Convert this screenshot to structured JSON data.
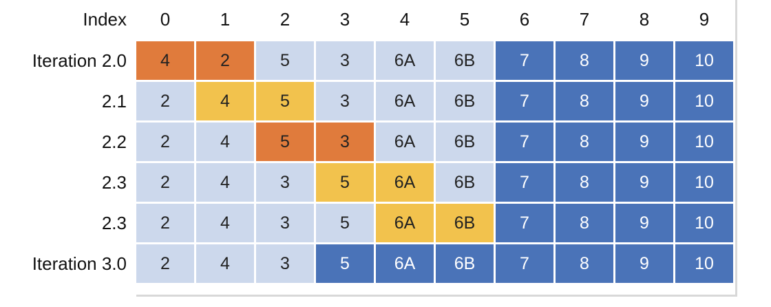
{
  "header": {
    "label": "Index",
    "indices": [
      "0",
      "1",
      "2",
      "3",
      "4",
      "5",
      "6",
      "7",
      "8",
      "9"
    ]
  },
  "colors": {
    "light": "#ccd8ec",
    "dark": "#4a73b8",
    "orange": "#e07b3c",
    "yellow": "#f2c24d"
  },
  "rows": [
    {
      "label": "Iteration 2.0",
      "cells": [
        {
          "v": "4",
          "c": "orange"
        },
        {
          "v": "2",
          "c": "orange"
        },
        {
          "v": "5",
          "c": "light"
        },
        {
          "v": "3",
          "c": "light"
        },
        {
          "v": "6A",
          "c": "light"
        },
        {
          "v": "6B",
          "c": "light"
        },
        {
          "v": "7",
          "c": "dark"
        },
        {
          "v": "8",
          "c": "dark"
        },
        {
          "v": "9",
          "c": "dark"
        },
        {
          "v": "10",
          "c": "dark"
        }
      ]
    },
    {
      "label": "2.1",
      "cells": [
        {
          "v": "2",
          "c": "light"
        },
        {
          "v": "4",
          "c": "yellow"
        },
        {
          "v": "5",
          "c": "yellow"
        },
        {
          "v": "3",
          "c": "light"
        },
        {
          "v": "6A",
          "c": "light"
        },
        {
          "v": "6B",
          "c": "light"
        },
        {
          "v": "7",
          "c": "dark"
        },
        {
          "v": "8",
          "c": "dark"
        },
        {
          "v": "9",
          "c": "dark"
        },
        {
          "v": "10",
          "c": "dark"
        }
      ]
    },
    {
      "label": "2.2",
      "cells": [
        {
          "v": "2",
          "c": "light"
        },
        {
          "v": "4",
          "c": "light"
        },
        {
          "v": "5",
          "c": "orange"
        },
        {
          "v": "3",
          "c": "orange"
        },
        {
          "v": "6A",
          "c": "light"
        },
        {
          "v": "6B",
          "c": "light"
        },
        {
          "v": "7",
          "c": "dark"
        },
        {
          "v": "8",
          "c": "dark"
        },
        {
          "v": "9",
          "c": "dark"
        },
        {
          "v": "10",
          "c": "dark"
        }
      ]
    },
    {
      "label": "2.3",
      "cells": [
        {
          "v": "2",
          "c": "light"
        },
        {
          "v": "4",
          "c": "light"
        },
        {
          "v": "3",
          "c": "light"
        },
        {
          "v": "5",
          "c": "yellow"
        },
        {
          "v": "6A",
          "c": "yellow"
        },
        {
          "v": "6B",
          "c": "light"
        },
        {
          "v": "7",
          "c": "dark"
        },
        {
          "v": "8",
          "c": "dark"
        },
        {
          "v": "9",
          "c": "dark"
        },
        {
          "v": "10",
          "c": "dark"
        }
      ]
    },
    {
      "label": "2.3",
      "cells": [
        {
          "v": "2",
          "c": "light"
        },
        {
          "v": "4",
          "c": "light"
        },
        {
          "v": "3",
          "c": "light"
        },
        {
          "v": "5",
          "c": "light"
        },
        {
          "v": "6A",
          "c": "yellow"
        },
        {
          "v": "6B",
          "c": "yellow"
        },
        {
          "v": "7",
          "c": "dark"
        },
        {
          "v": "8",
          "c": "dark"
        },
        {
          "v": "9",
          "c": "dark"
        },
        {
          "v": "10",
          "c": "dark"
        }
      ]
    },
    {
      "label": "Iteration 3.0",
      "cells": [
        {
          "v": "2",
          "c": "light"
        },
        {
          "v": "4",
          "c": "light"
        },
        {
          "v": "3",
          "c": "light"
        },
        {
          "v": "5",
          "c": "dark"
        },
        {
          "v": "6A",
          "c": "dark"
        },
        {
          "v": "6B",
          "c": "dark"
        },
        {
          "v": "7",
          "c": "dark"
        },
        {
          "v": "8",
          "c": "dark"
        },
        {
          "v": "9",
          "c": "dark"
        },
        {
          "v": "10",
          "c": "dark"
        }
      ]
    }
  ]
}
